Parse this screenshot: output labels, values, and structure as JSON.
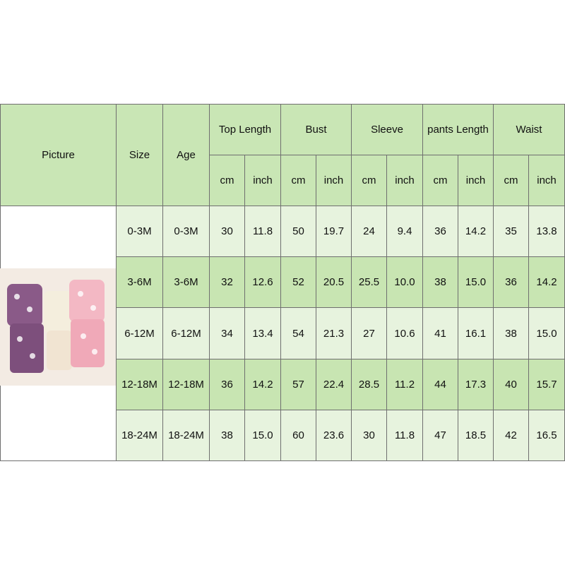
{
  "header": {
    "picture": "Picture",
    "size": "Size",
    "age": "Age",
    "groups": [
      {
        "name": "Top Length",
        "units": [
          "cm",
          "inch"
        ]
      },
      {
        "name": "Bust",
        "units": [
          "cm",
          "inch"
        ]
      },
      {
        "name": "Sleeve",
        "units": [
          "cm",
          "inch"
        ]
      },
      {
        "name": "pants Length",
        "units": [
          "cm",
          "inch"
        ]
      },
      {
        "name": "Waist",
        "units": [
          "cm",
          "inch"
        ]
      }
    ]
  },
  "table": {
    "rows": [
      [
        "0-3M",
        "0-3M",
        "30",
        "11.8",
        "50",
        "19.7",
        "24",
        "9.4",
        "36",
        "14.2",
        "35",
        "13.8"
      ],
      [
        "3-6M",
        "3-6M",
        "32",
        "12.6",
        "52",
        "20.5",
        "25.5",
        "10.0",
        "38",
        "15.0",
        "36",
        "14.2"
      ],
      [
        "6-12M",
        "6-12M",
        "34",
        "13.4",
        "54",
        "21.3",
        "27",
        "10.6",
        "41",
        "16.1",
        "38",
        "15.0"
      ],
      [
        "12-18M",
        "12-18M",
        "36",
        "14.2",
        "57",
        "22.4",
        "28.5",
        "11.2",
        "44",
        "17.3",
        "40",
        "15.7"
      ],
      [
        "18-24M",
        "18-24M",
        "38",
        "15.0",
        "60",
        "23.6",
        "30",
        "11.8",
        "47",
        "18.5",
        "42",
        "16.5"
      ]
    ]
  }
}
